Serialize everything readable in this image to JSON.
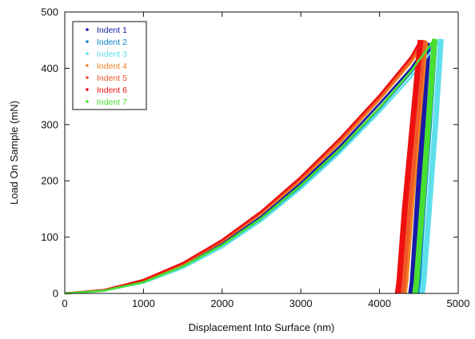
{
  "chart_data": {
    "type": "line",
    "title": "",
    "xlabel": "Displacement Into Surface (nm)",
    "ylabel": "Load On Sample (mN)",
    "xlim": [
      0,
      5000
    ],
    "ylim": [
      0,
      500
    ],
    "x_ticks": [
      "0",
      "1000",
      "2000",
      "3000",
      "4000",
      "5000"
    ],
    "y_ticks": [
      "0",
      "100",
      "200",
      "300",
      "400",
      "500"
    ],
    "grid": false,
    "legend_position": "top-left",
    "series": [
      {
        "name": "Indent 1",
        "color": "#1a1aa6",
        "loading": [
          [
            0,
            0
          ],
          [
            500,
            6
          ],
          [
            1000,
            22
          ],
          [
            1500,
            50
          ],
          [
            2000,
            88
          ],
          [
            2500,
            137
          ],
          [
            3000,
            196
          ],
          [
            3500,
            262
          ],
          [
            4000,
            337
          ],
          [
            4400,
            400
          ],
          [
            4620,
            445
          ]
        ],
        "unloading": [
          [
            4620,
            445
          ],
          [
            4550,
            300
          ],
          [
            4480,
            150
          ],
          [
            4420,
            20
          ],
          [
            4400,
            0
          ]
        ]
      },
      {
        "name": "Indent 2",
        "color": "#0c84c8",
        "loading": [
          [
            0,
            0
          ],
          [
            500,
            5
          ],
          [
            1000,
            20
          ],
          [
            1500,
            47
          ],
          [
            2000,
            84
          ],
          [
            2500,
            132
          ],
          [
            3000,
            190
          ],
          [
            3500,
            255
          ],
          [
            4000,
            328
          ],
          [
            4400,
            392
          ],
          [
            4700,
            450
          ]
        ],
        "unloading": [
          [
            4700,
            450
          ],
          [
            4630,
            300
          ],
          [
            4550,
            150
          ],
          [
            4490,
            20
          ],
          [
            4470,
            0
          ]
        ]
      },
      {
        "name": "Indent 3",
        "color": "#5ee0ec",
        "loading": [
          [
            0,
            0
          ],
          [
            500,
            5
          ],
          [
            1000,
            19
          ],
          [
            1500,
            45
          ],
          [
            2000,
            82
          ],
          [
            2500,
            129
          ],
          [
            3000,
            186
          ],
          [
            3500,
            250
          ],
          [
            4000,
            322
          ],
          [
            4400,
            384
          ],
          [
            4780,
            452
          ]
        ],
        "unloading": [
          [
            4780,
            452
          ],
          [
            4710,
            300
          ],
          [
            4630,
            150
          ],
          [
            4560,
            20
          ],
          [
            4540,
            0
          ]
        ]
      },
      {
        "name": "Indent 4",
        "color": "#f08020",
        "loading": [
          [
            0,
            0
          ],
          [
            500,
            6
          ],
          [
            1000,
            23
          ],
          [
            1500,
            52
          ],
          [
            2000,
            92
          ],
          [
            2500,
            142
          ],
          [
            3000,
            201
          ],
          [
            3500,
            268
          ],
          [
            4000,
            344
          ],
          [
            4400,
            410
          ],
          [
            4580,
            448
          ]
        ],
        "unloading": [
          [
            4580,
            448
          ],
          [
            4490,
            300
          ],
          [
            4400,
            150
          ],
          [
            4330,
            20
          ],
          [
            4310,
            0
          ]
        ]
      },
      {
        "name": "Indent 5",
        "color": "#f05828",
        "loading": [
          [
            0,
            0
          ],
          [
            500,
            6
          ],
          [
            1000,
            24
          ],
          [
            1500,
            53
          ],
          [
            2000,
            93
          ],
          [
            2500,
            144
          ],
          [
            3000,
            204
          ],
          [
            3500,
            272
          ],
          [
            4000,
            348
          ],
          [
            4400,
            415
          ],
          [
            4560,
            450
          ]
        ],
        "unloading": [
          [
            4560,
            450
          ],
          [
            4470,
            300
          ],
          [
            4370,
            150
          ],
          [
            4300,
            20
          ],
          [
            4280,
            0
          ]
        ]
      },
      {
        "name": "Indent 6",
        "color": "#ee1010",
        "loading": [
          [
            0,
            0
          ],
          [
            500,
            6
          ],
          [
            1000,
            24
          ],
          [
            1500,
            54
          ],
          [
            2000,
            95
          ],
          [
            2500,
            146
          ],
          [
            3000,
            207
          ],
          [
            3500,
            276
          ],
          [
            4000,
            352
          ],
          [
            4400,
            420
          ],
          [
            4520,
            450
          ]
        ],
        "unloading": [
          [
            4520,
            450
          ],
          [
            4420,
            300
          ],
          [
            4320,
            150
          ],
          [
            4250,
            20
          ],
          [
            4230,
            0
          ]
        ]
      },
      {
        "name": "Indent 7",
        "color": "#48e030",
        "loading": [
          [
            0,
            0
          ],
          [
            500,
            5
          ],
          [
            1000,
            20
          ],
          [
            1500,
            48
          ],
          [
            2000,
            86
          ],
          [
            2500,
            134
          ],
          [
            3000,
            192
          ],
          [
            3500,
            257
          ],
          [
            4000,
            330
          ],
          [
            4400,
            395
          ],
          [
            4700,
            452
          ]
        ],
        "unloading": [
          [
            4700,
            452
          ],
          [
            4620,
            300
          ],
          [
            4540,
            150
          ],
          [
            4470,
            20
          ],
          [
            4450,
            0
          ]
        ]
      }
    ]
  }
}
